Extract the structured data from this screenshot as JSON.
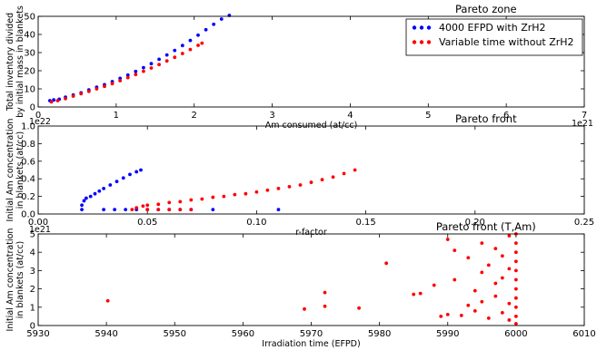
{
  "colors": {
    "blue": "#0000ff",
    "red": "#ff0000",
    "axis": "#000000",
    "background": "#ffffff"
  },
  "chart_data": [
    {
      "type": "scatter",
      "title": "Pareto zone",
      "xlabel": "Am consumed (at/cc)",
      "ylabel": "Total inventory divided by initial mass in blankets",
      "ylabel_lines": [
        "Total inventory divided",
        "by initial mass in blankets"
      ],
      "x_multiplier": "1e21",
      "xlim": [
        0,
        7
      ],
      "ylim": [
        0,
        50
      ],
      "xticks": [
        "0",
        "1",
        "2",
        "3",
        "4",
        "5",
        "6",
        "7"
      ],
      "yticks": [
        "0",
        "10",
        "20",
        "30",
        "40",
        "50"
      ],
      "legend_position": "upper right",
      "series": [
        {
          "name": "4000 EFPD with ZrH2",
          "color": "#0000ff",
          "points": [
            [
              0.15,
              3.5
            ],
            [
              0.2,
              3.9
            ],
            [
              0.27,
              4.3
            ],
            [
              0.35,
              5.4
            ],
            [
              0.45,
              6.6
            ],
            [
              0.55,
              7.8
            ],
            [
              0.65,
              9.4
            ],
            [
              0.75,
              10.9
            ],
            [
              0.85,
              12.3
            ],
            [
              0.95,
              14
            ],
            [
              1.05,
              15.8
            ],
            [
              1.15,
              17.6
            ],
            [
              1.25,
              19.6
            ],
            [
              1.35,
              21.7
            ],
            [
              1.45,
              23.9
            ],
            [
              1.55,
              26.3
            ],
            [
              1.65,
              28.7
            ],
            [
              1.75,
              31.2
            ],
            [
              1.85,
              33.9
            ],
            [
              1.95,
              36.7
            ],
            [
              2.05,
              39.6
            ],
            [
              2.15,
              42.6
            ],
            [
              2.25,
              45.6
            ],
            [
              2.35,
              48.5
            ],
            [
              2.45,
              50.5
            ]
          ]
        },
        {
          "name": "Variable time without ZrH2",
          "color": "#ff0000",
          "points": [
            [
              0.17,
              2.8
            ],
            [
              0.25,
              3.5
            ],
            [
              0.35,
              4.6
            ],
            [
              0.45,
              6
            ],
            [
              0.55,
              7.3
            ],
            [
              0.65,
              8.6
            ],
            [
              0.75,
              10
            ],
            [
              0.85,
              11.4
            ],
            [
              0.95,
              12.9
            ],
            [
              1.05,
              14.5
            ],
            [
              1.15,
              16.2
            ],
            [
              1.25,
              17.9
            ],
            [
              1.35,
              19.7
            ],
            [
              1.45,
              21.5
            ],
            [
              1.55,
              23.4
            ],
            [
              1.65,
              25.4
            ],
            [
              1.75,
              27.4
            ],
            [
              1.85,
              29.5
            ],
            [
              1.95,
              31.7
            ],
            [
              2.05,
              34
            ],
            [
              2.1,
              35.2
            ]
          ]
        }
      ]
    },
    {
      "type": "scatter",
      "title": "Pareto front",
      "xlabel": "r-factor",
      "ylabel": "Initial Am concentration in blankets (at/cc)",
      "ylabel_lines": [
        "Initial Am concentration",
        "in blankets (at/cc)"
      ],
      "y_multiplier": "1e22",
      "xlim": [
        0,
        0.25
      ],
      "ylim": [
        0,
        1.0
      ],
      "xticks": [
        "0.00",
        "0.05",
        "0.10",
        "0.15",
        "0.20",
        "0.25"
      ],
      "yticks": [
        "0.0",
        "0.2",
        "0.4",
        "0.6",
        "0.8",
        "1.0"
      ],
      "series": [
        {
          "color": "#0000ff",
          "points": [
            [
              0.02,
              0.05
            ],
            [
              0.02,
              0.1
            ],
            [
              0.021,
              0.15
            ],
            [
              0.022,
              0.18
            ],
            [
              0.024,
              0.2
            ],
            [
              0.026,
              0.23
            ],
            [
              0.028,
              0.26
            ],
            [
              0.03,
              0.29
            ],
            [
              0.033,
              0.33
            ],
            [
              0.036,
              0.37
            ],
            [
              0.039,
              0.41
            ],
            [
              0.042,
              0.45
            ],
            [
              0.045,
              0.48
            ],
            [
              0.047,
              0.5
            ],
            [
              0.03,
              0.05
            ],
            [
              0.035,
              0.05
            ],
            [
              0.04,
              0.05
            ],
            [
              0.045,
              0.05
            ],
            [
              0.05,
              0.05
            ],
            [
              0.055,
              0.05
            ],
            [
              0.06,
              0.05
            ],
            [
              0.065,
              0.05
            ],
            [
              0.07,
              0.05
            ],
            [
              0.08,
              0.05
            ],
            [
              0.11,
              0.05
            ]
          ]
        },
        {
          "color": "#ff0000",
          "points": [
            [
              0.043,
              0.05
            ],
            [
              0.045,
              0.07
            ],
            [
              0.048,
              0.09
            ],
            [
              0.05,
              0.1
            ],
            [
              0.055,
              0.11
            ],
            [
              0.06,
              0.13
            ],
            [
              0.065,
              0.14
            ],
            [
              0.07,
              0.16
            ],
            [
              0.075,
              0.17
            ],
            [
              0.08,
              0.19
            ],
            [
              0.085,
              0.2
            ],
            [
              0.09,
              0.22
            ],
            [
              0.095,
              0.23
            ],
            [
              0.1,
              0.25
            ],
            [
              0.105,
              0.27
            ],
            [
              0.11,
              0.29
            ],
            [
              0.115,
              0.31
            ],
            [
              0.12,
              0.33
            ],
            [
              0.125,
              0.36
            ],
            [
              0.13,
              0.39
            ],
            [
              0.135,
              0.42
            ],
            [
              0.14,
              0.46
            ],
            [
              0.145,
              0.5
            ],
            [
              0.05,
              0.05
            ],
            [
              0.055,
              0.05
            ],
            [
              0.06,
              0.05
            ],
            [
              0.065,
              0.05
            ],
            [
              0.07,
              0.05
            ]
          ]
        }
      ]
    },
    {
      "type": "scatter",
      "title": "Pareto front (T,Am)",
      "xlabel": "Irradiation time (EFPD)",
      "ylabel": "Initial Am concentration in blankets (at/cc)",
      "ylabel_lines": [
        "Initial Am concentration",
        "in blankets (at/cc)"
      ],
      "y_multiplier": "1e21",
      "xlim": [
        5930,
        6010
      ],
      "ylim": [
        0,
        5
      ],
      "xticks": [
        "5930",
        "5940",
        "5950",
        "5960",
        "5970",
        "5980",
        "5990",
        "6000",
        "6010"
      ],
      "yticks": [
        "0",
        "1",
        "2",
        "3",
        "4",
        "5"
      ],
      "series": [
        {
          "color": "#ff0000",
          "points": [
            [
              5940.2,
              1.35
            ],
            [
              5969,
              0.9
            ],
            [
              5972,
              1.8
            ],
            [
              5972,
              1.05
            ],
            [
              5977,
              0.95
            ],
            [
              5981,
              3.4
            ],
            [
              5985,
              1.7
            ],
            [
              5986,
              1.75
            ],
            [
              5988,
              2.2
            ],
            [
              5989,
              0.5
            ],
            [
              5990,
              4.7
            ],
            [
              5990,
              0.6
            ],
            [
              5991,
              4.1
            ],
            [
              5991,
              2.5
            ],
            [
              5992,
              0.55
            ],
            [
              5993,
              1.1
            ],
            [
              5993,
              3.7
            ],
            [
              5994,
              1.9
            ],
            [
              5994,
              0.8
            ],
            [
              5995,
              4.5
            ],
            [
              5995,
              2.9
            ],
            [
              5995,
              1.3
            ],
            [
              5996,
              3.3
            ],
            [
              5996,
              0.4
            ],
            [
              5997,
              2.3
            ],
            [
              5997,
              4.2
            ],
            [
              5997,
              1.6
            ],
            [
              5998,
              3.8
            ],
            [
              5998,
              0.7
            ],
            [
              5998,
              2.6
            ],
            [
              5999,
              4.9
            ],
            [
              5999,
              1.2
            ],
            [
              5999,
              3.1
            ],
            [
              5999,
              0.3
            ],
            [
              6000,
              0.1
            ],
            [
              6000,
              0.5
            ],
            [
              6000,
              1.0
            ],
            [
              6000,
              1.5
            ],
            [
              6000,
              2.0
            ],
            [
              6000,
              2.5
            ],
            [
              6000,
              3.0
            ],
            [
              6000,
              3.5
            ],
            [
              6000,
              4.0
            ],
            [
              6000,
              4.5
            ],
            [
              6000,
              5.0
            ]
          ]
        }
      ]
    }
  ]
}
